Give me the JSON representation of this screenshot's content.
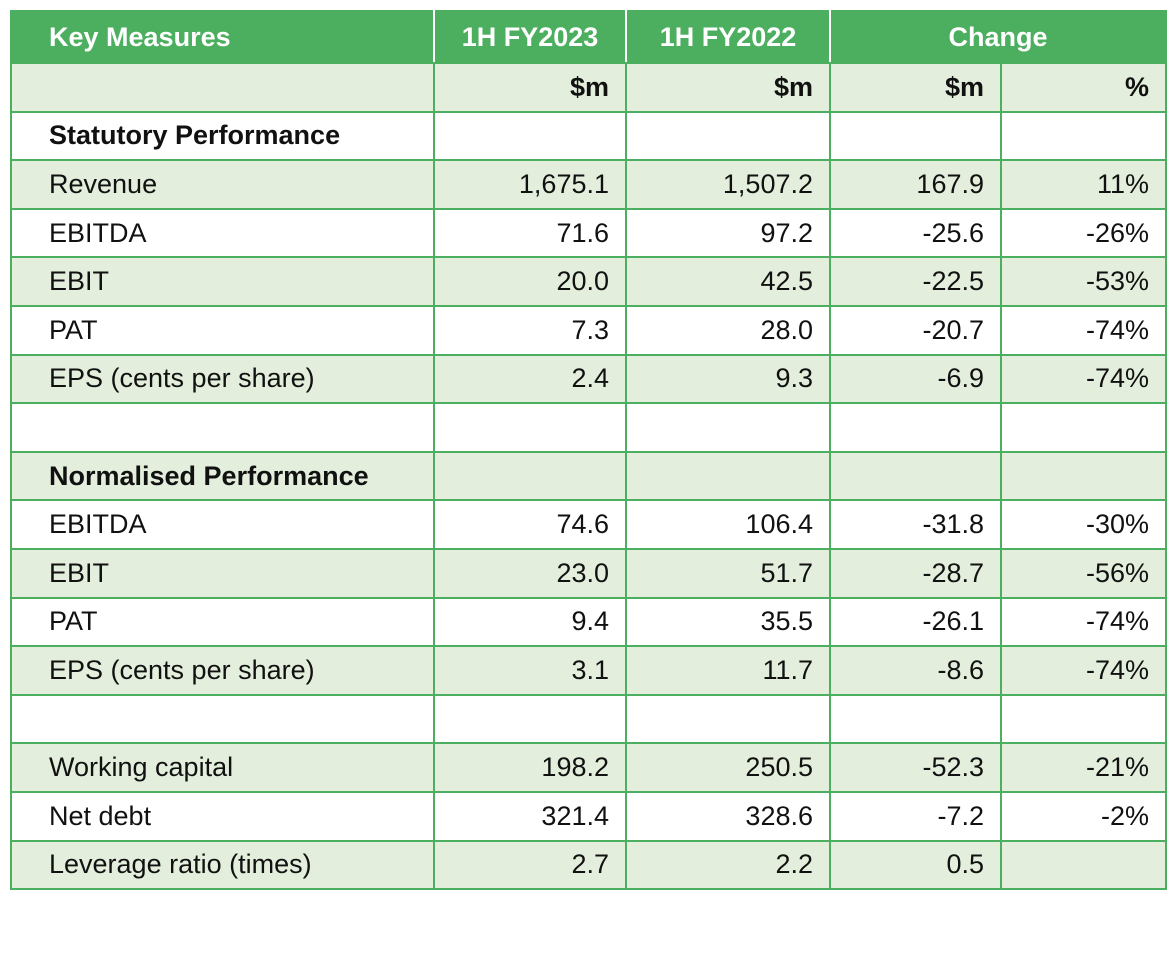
{
  "header": {
    "measure": "Key Measures",
    "period_current": "1H FY2023",
    "period_prior": "1H FY2022",
    "change": "Change"
  },
  "units": {
    "current": "$m",
    "prior": "$m",
    "change_abs": "$m",
    "change_pct": "%"
  },
  "rows": [
    {
      "label": "Statutory Performance",
      "current": "",
      "prior": "",
      "change_abs": "",
      "change_pct": ""
    },
    {
      "label": "Revenue",
      "current": "1,675.1",
      "prior": "1,507.2",
      "change_abs": "167.9",
      "change_pct": "11%"
    },
    {
      "label": "EBITDA",
      "current": "71.6",
      "prior": "97.2",
      "change_abs": "-25.6",
      "change_pct": "-26%"
    },
    {
      "label": "EBIT",
      "current": "20.0",
      "prior": "42.5",
      "change_abs": "-22.5",
      "change_pct": "-53%"
    },
    {
      "label": "PAT",
      "current": "7.3",
      "prior": "28.0",
      "change_abs": "-20.7",
      "change_pct": "-74%"
    },
    {
      "label": "EPS (cents per share)",
      "current": "2.4",
      "prior": "9.3",
      "change_abs": "-6.9",
      "change_pct": "-74%"
    },
    {
      "label": "",
      "current": "",
      "prior": "",
      "change_abs": "",
      "change_pct": ""
    },
    {
      "label": "Normalised Performance",
      "current": "",
      "prior": "",
      "change_abs": "",
      "change_pct": ""
    },
    {
      "label": "EBITDA",
      "current": "74.6",
      "prior": "106.4",
      "change_abs": "-31.8",
      "change_pct": "-30%"
    },
    {
      "label": "EBIT",
      "current": "23.0",
      "prior": "51.7",
      "change_abs": "-28.7",
      "change_pct": "-56%"
    },
    {
      "label": "PAT",
      "current": "9.4",
      "prior": "35.5",
      "change_abs": "-26.1",
      "change_pct": "-74%"
    },
    {
      "label": "EPS (cents per share)",
      "current": "3.1",
      "prior": "11.7",
      "change_abs": "-8.6",
      "change_pct": "-74%"
    },
    {
      "label": "",
      "current": "",
      "prior": "",
      "change_abs": "",
      "change_pct": ""
    },
    {
      "label": "Working capital",
      "current": "198.2",
      "prior": "250.5",
      "change_abs": "-52.3",
      "change_pct": "-21%"
    },
    {
      "label": "Net debt",
      "current": "321.4",
      "prior": "328.6",
      "change_abs": "-7.2",
      "change_pct": "-2%"
    },
    {
      "label": "Leverage ratio (times)",
      "current": "2.7",
      "prior": "2.2",
      "change_abs": "0.5",
      "change_pct": ""
    }
  ]
}
